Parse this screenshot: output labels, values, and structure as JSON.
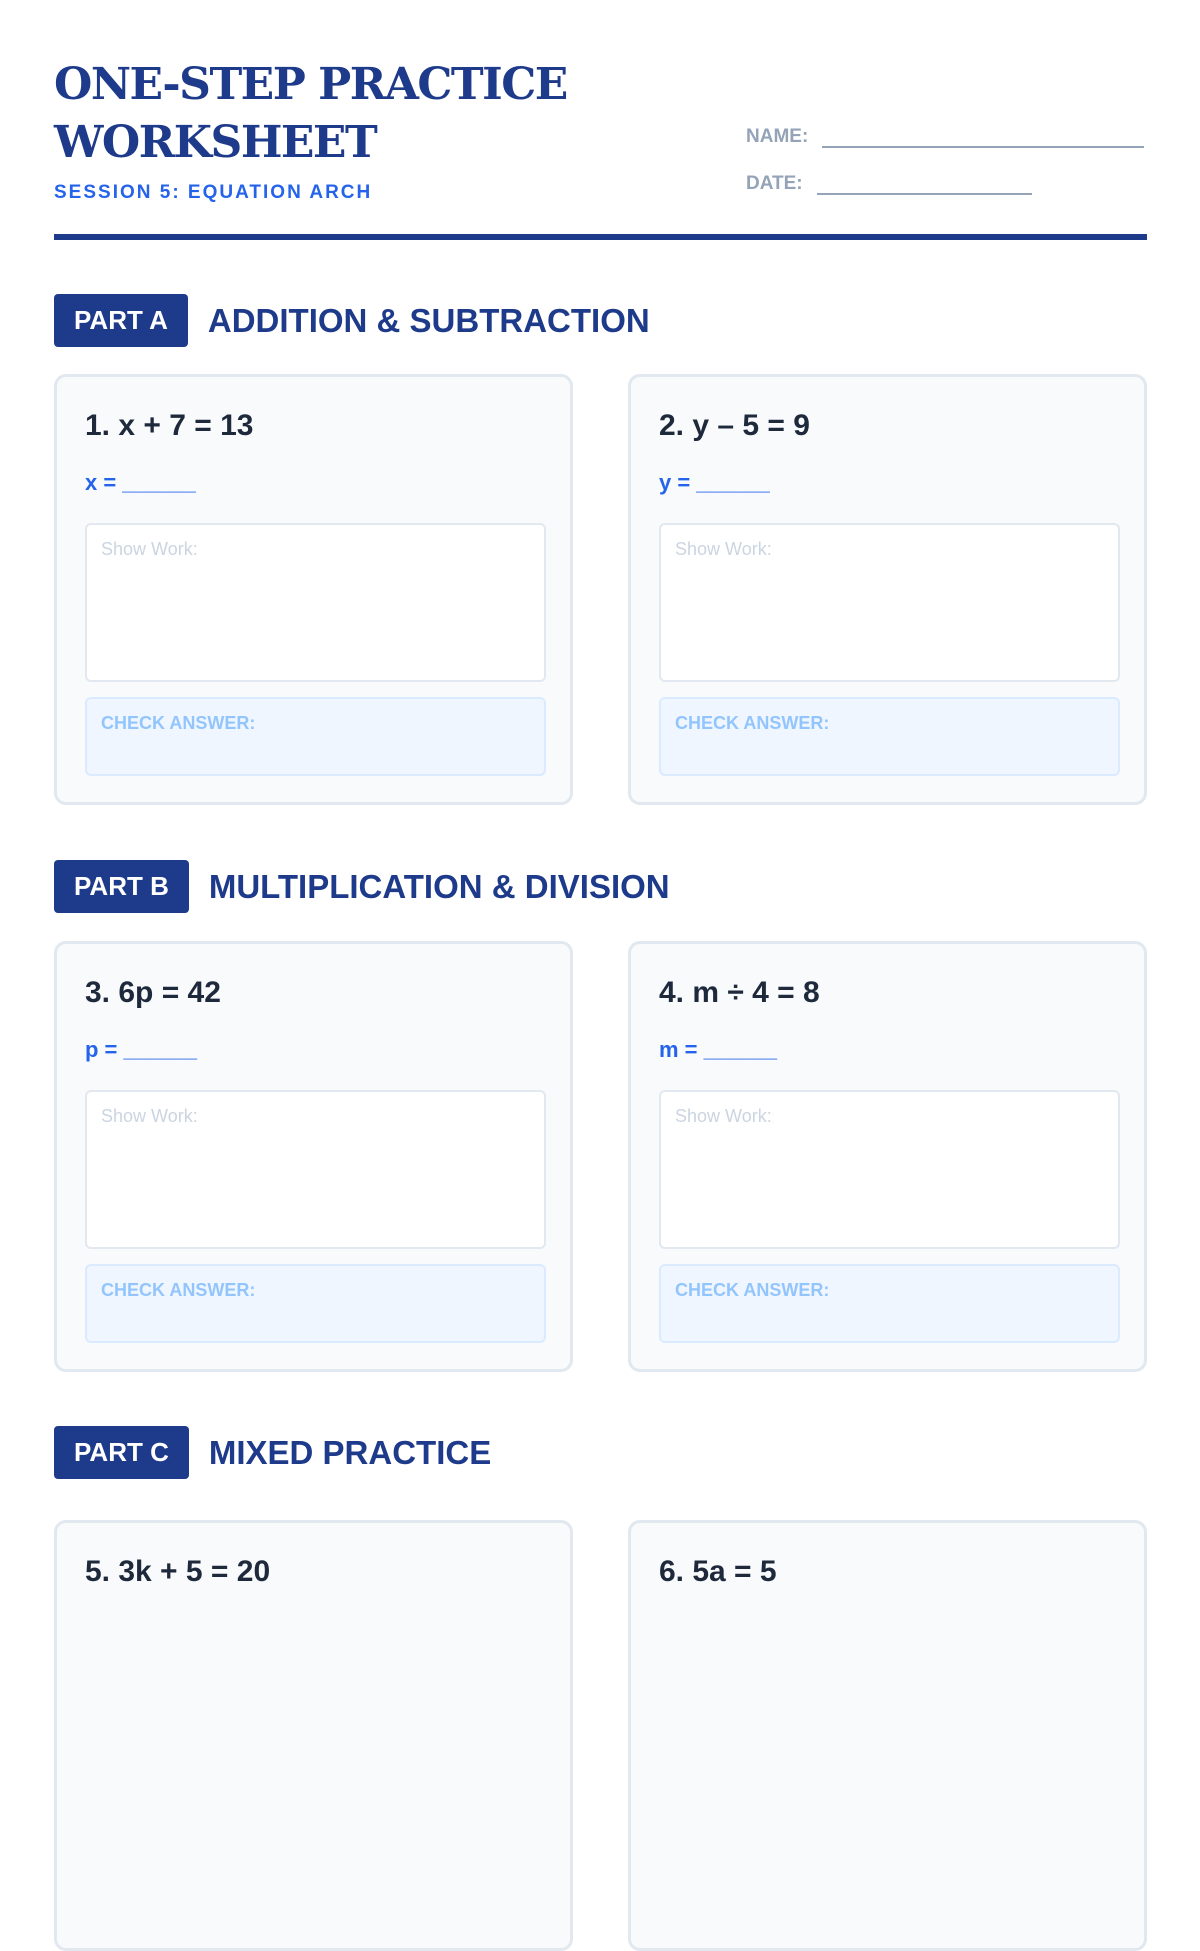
{
  "header": {
    "title": "ONE-STEP PRACTICE WORKSHEET",
    "subtitle": "SESSION 5: EQUATION ARCH",
    "name_label": "NAME:",
    "date_label": "DATE:"
  },
  "parts": [
    {
      "badge": "PART A",
      "title": "ADDITION & SUBTRACTION"
    },
    {
      "badge": "PART B",
      "title": "MULTIPLICATION & DIVISION"
    },
    {
      "badge": "PART C",
      "title": "MIXED PRACTICE"
    }
  ],
  "problems": [
    {
      "equation": "1. x + 7 = 13",
      "answer": "x = ______",
      "work": "Show Work:",
      "check": "CHECK ANSWER:"
    },
    {
      "equation": "2. y – 5 = 9",
      "answer": "y = ______",
      "work": "Show Work:",
      "check": "CHECK ANSWER:"
    },
    {
      "equation": "3. 6p = 42",
      "answer": "p = ______",
      "work": "Show Work:",
      "check": "CHECK ANSWER:"
    },
    {
      "equation": "4. m ÷ 4 = 8",
      "answer": "m = ______",
      "work": "Show Work:",
      "check": "CHECK ANSWER:"
    },
    {
      "equation": "5. 3k + 5 = 20"
    },
    {
      "equation": "6. 5a = 5"
    }
  ],
  "colors": {
    "primary": "#1e3a8a",
    "accent": "#2563eb"
  }
}
